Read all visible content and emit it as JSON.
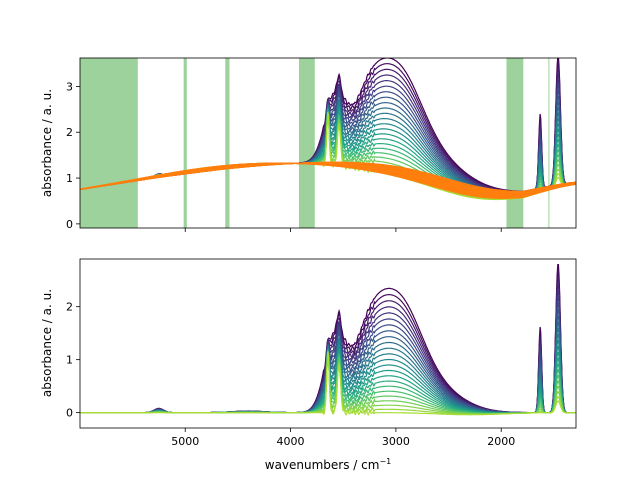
{
  "figure": {
    "xlabel": "wavenumbers / cm",
    "xlabel_sup": "−1"
  },
  "colors": {
    "viridis_dark": "#440154",
    "viridis_mid": "#3b528b",
    "viridis_teal": "#21918c",
    "viridis_light": "#5ec962",
    "viridis_yellow": "#a8dc32",
    "orange": "#ff7f0e",
    "region_green": "#98d097"
  },
  "chart_data": [
    {
      "type": "line",
      "panel": "top",
      "xlabel": "",
      "ylabel": "absorbance / a. u.",
      "xlim": [
        5999,
        1290
      ],
      "ylim": [
        -0.09,
        3.62
      ],
      "xticks": [
        5000,
        4000,
        3000,
        2000
      ],
      "xtick_labels_shown": false,
      "yticks": [
        0,
        1,
        2,
        3
      ],
      "ytick_labels": [
        "0",
        "1",
        "2",
        "3"
      ],
      "grid": false,
      "legend": "none",
      "excluded_regions": [
        [
          5999,
          5450
        ],
        [
          5015,
          4985
        ],
        [
          4620,
          4580
        ],
        [
          3920,
          3770
        ],
        [
          1950,
          1790
        ],
        [
          1552,
          1548
        ]
      ],
      "series_count": 24,
      "description_series": "absorbance spectra decreasing over time (viridis colormap, dark purple = first, yellow-green = last) with fitted baselines in orange",
      "key_points": {
        "baseline_start": [
          5999,
          0.78
        ],
        "peak_broad_OH": [
          2990,
          3.4
        ],
        "shoulder": [
          3250,
          3.02
        ],
        "plateau": [
          3600,
          2.6
        ],
        "sharp_peak_1": [
          1630,
          2.3
        ],
        "sharp_peak_2": [
          1460,
          3.58
        ],
        "small_peak_3640": [
          3645,
          1.75
        ],
        "small_peak_3540": [
          3540,
          1.62
        ],
        "end": [
          1290,
          0.75
        ]
      }
    },
    {
      "type": "line",
      "panel": "bottom",
      "xlabel": "wavenumbers / cm⁻¹",
      "ylabel": "absorbance / a. u.",
      "xlim": [
        5999,
        1290
      ],
      "ylim": [
        -0.29,
        2.9
      ],
      "xticks": [
        5000,
        4000,
        3000,
        2000
      ],
      "xtick_labels": [
        "5000",
        "4000",
        "3000",
        "2000"
      ],
      "yticks": [
        0,
        1,
        2
      ],
      "ytick_labels": [
        "0",
        "1",
        "2"
      ],
      "grid": false,
      "legend": "none",
      "series_count": 24,
      "description_series": "baseline-corrected spectra (viridis colormap)",
      "key_points": {
        "baseline": [
          5999,
          0.0
        ],
        "peak_broad_OH": [
          2990,
          2.55
        ],
        "shoulder": [
          3250,
          2.2
        ],
        "plateau": [
          3600,
          1.6
        ],
        "sharp_peak_1": [
          1630,
          1.62
        ],
        "sharp_peak_2": [
          1460,
          2.82
        ],
        "small_peak_3640": [
          3645,
          1.3
        ],
        "small_peak_3540": [
          3540,
          1.0
        ],
        "small_peak_5250": [
          5250,
          0.08
        ]
      }
    }
  ]
}
